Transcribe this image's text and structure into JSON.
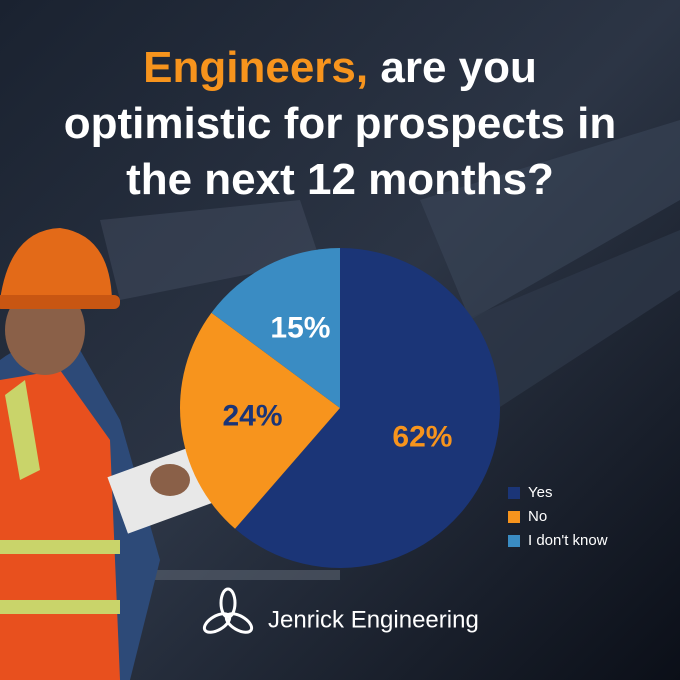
{
  "chart_data": {
    "type": "pie",
    "title_highlight": "Engineers,",
    "title": "are you optimistic for prospects in the next 12 months?",
    "categories": [
      "Yes",
      "No",
      "I don't know"
    ],
    "values": [
      62,
      24,
      15
    ],
    "value_labels": [
      "62%",
      "24%",
      "15%"
    ],
    "colors": [
      "#1b3577",
      "#f7941d",
      "#3a8cc3"
    ],
    "label_colors": [
      "#f7941d",
      "#1b3577",
      "#ffffff"
    ],
    "legend": "bottom-right"
  },
  "brand": {
    "name": "Jenrick Engineering"
  }
}
